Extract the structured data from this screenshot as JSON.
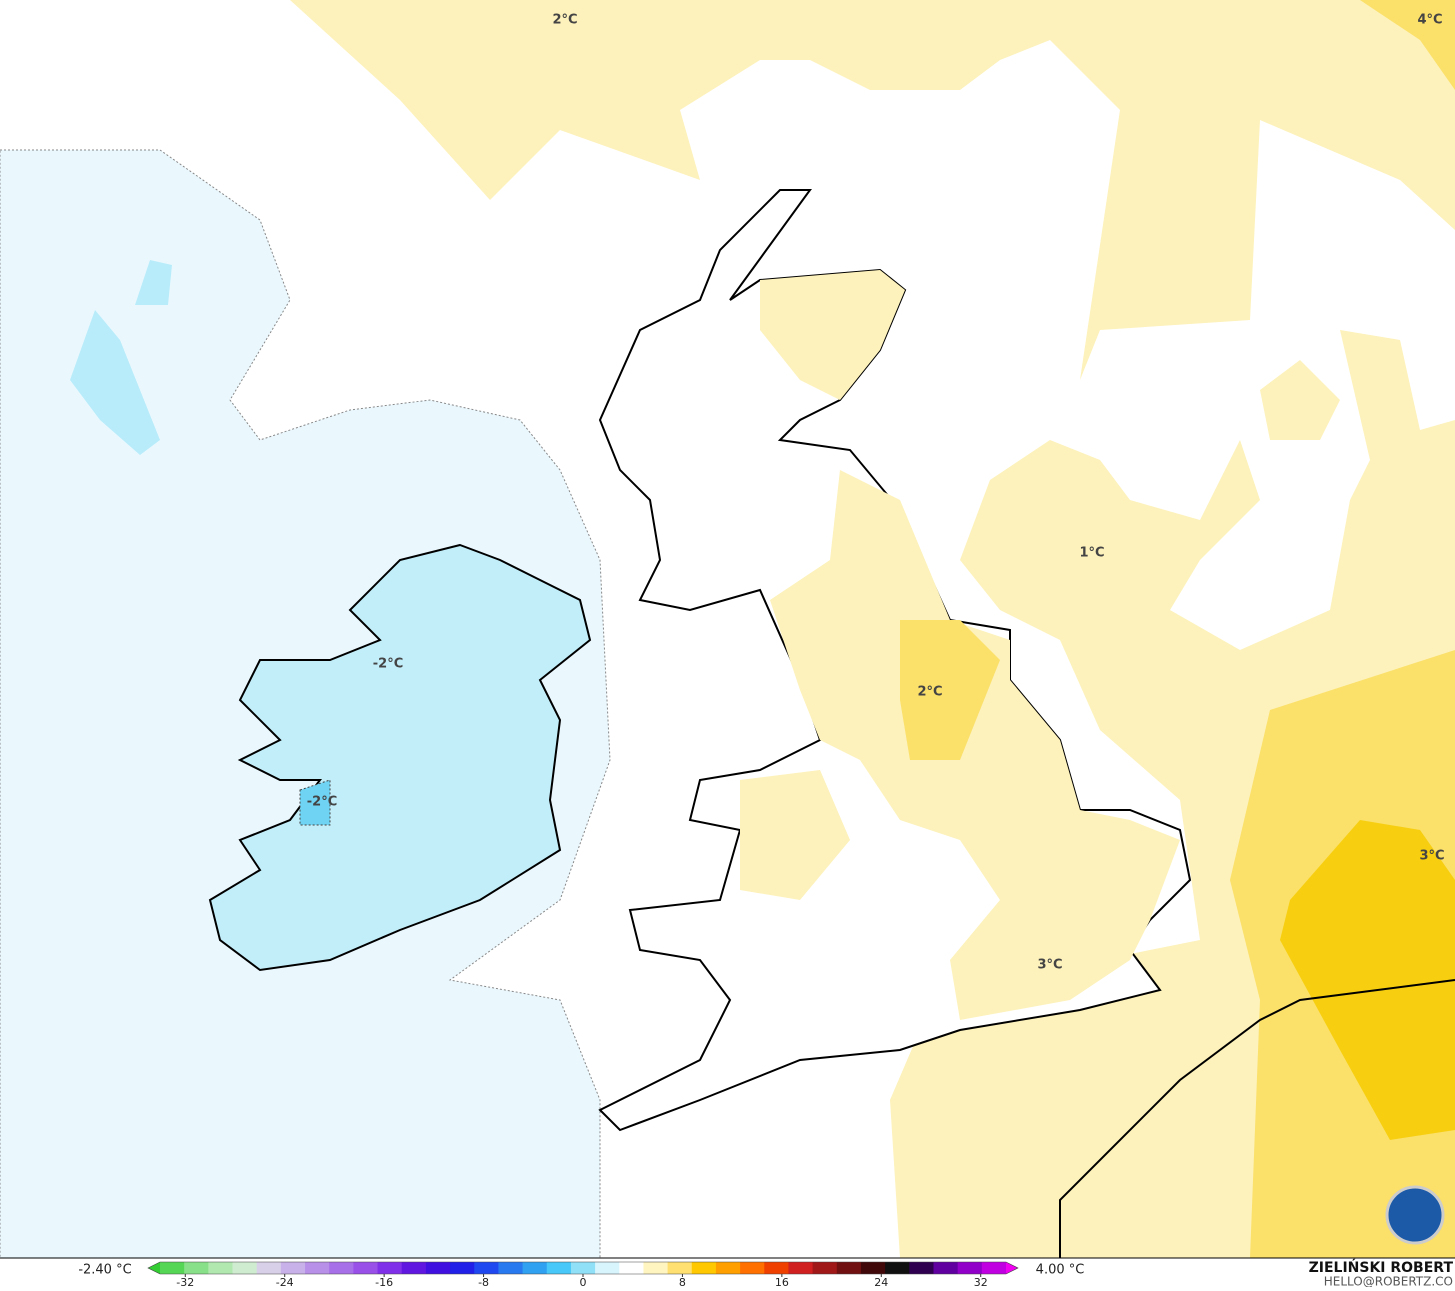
{
  "map": {
    "contour_labels": [
      "2°C",
      "4°C",
      "1°C",
      "2°C",
      "-2°C",
      "-2°C",
      "3°C",
      "3°C"
    ],
    "colorbar": {
      "min_label": "-2.40 °C",
      "max_label": "4.00 °C",
      "lim": [
        -35,
        35
      ],
      "ticks": [
        -32,
        -24,
        -16,
        -8,
        0,
        8,
        16,
        24,
        32
      ],
      "colors": [
        "#33cc33",
        "#55d655",
        "#88e088",
        "#b0e8b0",
        "#d0ecd0",
        "#d8d0e8",
        "#c8b0e8",
        "#b890e8",
        "#a870e8",
        "#9850e8",
        "#8030e8",
        "#6018e0",
        "#4010e0",
        "#2020e8",
        "#2048f0",
        "#2878f0",
        "#30a0f0",
        "#48c8f8",
        "#90e0f8",
        "#d8f4fc",
        "#ffffff",
        "#fff5c0",
        "#ffe070",
        "#ffc800",
        "#ffa000",
        "#ff7000",
        "#f04000",
        "#d02020",
        "#a01818",
        "#701010",
        "#400808",
        "#101010",
        "#300050",
        "#6000a0",
        "#9000c8",
        "#c000e0",
        "#f000f0"
      ]
    },
    "author": "ZIELIŃSKI ROBERT",
    "contact": "HELLO@ROBERTZ.CO"
  }
}
